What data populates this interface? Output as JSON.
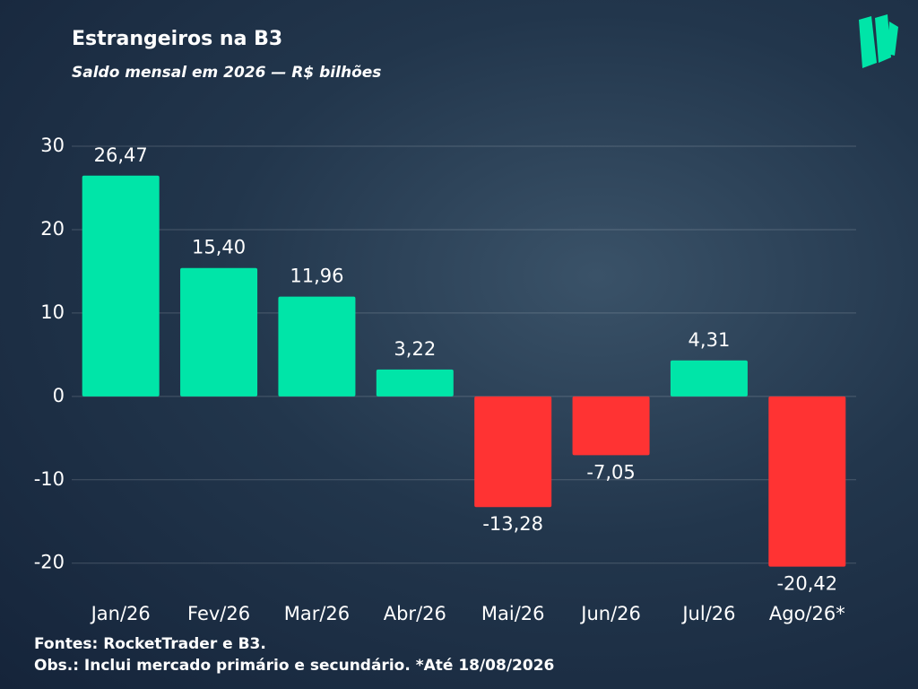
{
  "chart_data": {
    "type": "bar",
    "title": "Estrangeiros na B3",
    "subtitle": "Saldo mensal em 2026 — R$ bilhões",
    "categories": [
      "Jan/26",
      "Fev/26",
      "Mar/26",
      "Abr/26",
      "Mai/26",
      "Jun/26",
      "Jul/26",
      "Ago/26*"
    ],
    "values": [
      26.47,
      15.4,
      11.96,
      3.22,
      -13.28,
      -7.05,
      4.31,
      -20.42
    ],
    "value_labels": [
      "26,47",
      "15,40",
      "11,96",
      "3,22",
      "-13,28",
      "-7,05",
      "4,31",
      "-20,42"
    ],
    "positive_color": "#00e5a8",
    "negative_color": "#ff3333",
    "ylim": [
      -21,
      30
    ],
    "yticks": [
      -20,
      -10,
      0,
      10,
      20,
      30
    ],
    "grid": true,
    "source": "Fontes: RocketTrader e B3.",
    "note": "Obs.: Inclui mercado primário e secundário. *Até 18/08/2026"
  }
}
